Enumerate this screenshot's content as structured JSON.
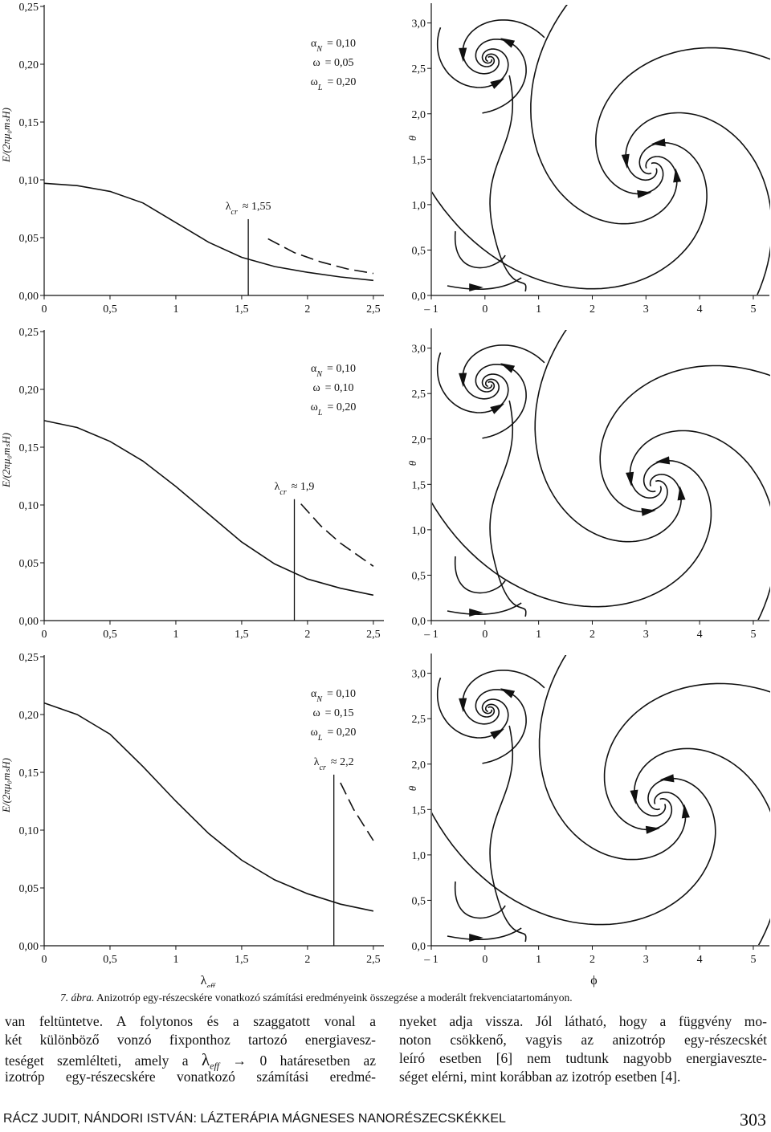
{
  "chart_data": [
    {
      "type": "line",
      "ylabel": "E/(2πμ₀mₛH)",
      "xlim": [
        0,
        2.58
      ],
      "ylim": [
        0,
        0.25
      ],
      "xticks": [
        0,
        {
          "value": 0.5,
          "label": "0,5"
        },
        1,
        {
          "value": 1.5,
          "label": "1,5"
        },
        2,
        {
          "value": 2.5,
          "label": "2,5"
        }
      ],
      "yticks": [
        {
          "value": 0,
          "label": "0,00"
        },
        {
          "value": 0.05,
          "label": "0,05"
        },
        {
          "value": 0.1,
          "label": "0,10"
        },
        {
          "value": 0.15,
          "label": "0,15"
        },
        {
          "value": 0.2,
          "label": "0,20"
        },
        {
          "value": 0.25,
          "label": "0,25"
        }
      ],
      "params": [
        {
          "symbol": "α",
          "sub": "N",
          "text": "= 0,10"
        },
        {
          "symbol": "ω",
          "text": "= 0,05"
        },
        {
          "symbol": "ω",
          "sub": "L",
          "text": "= 0,20"
        }
      ],
      "critical": {
        "x": 1.55,
        "top": 0.066,
        "label": {
          "symbol": "λ",
          "sub": "cr",
          "text": "≈ 1,55"
        }
      },
      "series": [
        {
          "style": "solid",
          "x": [
            0,
            0.25,
            0.5,
            0.75,
            1,
            1.25,
            1.5,
            1.75,
            2,
            2.25,
            2.5
          ],
          "values": [
            0.097,
            0.095,
            0.09,
            0.08,
            0.063,
            0.046,
            0.033,
            0.025,
            0.02,
            0.016,
            0.013
          ]
        },
        {
          "style": "dashed",
          "x": [
            1.7,
            1.9,
            2.1,
            2.3,
            2.5
          ],
          "values": [
            0.049,
            0.037,
            0.029,
            0.023,
            0.019
          ]
        }
      ]
    },
    {
      "type": "phase",
      "ylabel": "θ",
      "xlim": [
        -1,
        5.3
      ],
      "ylim": [
        0,
        3.2
      ],
      "xticks": [
        {
          "value": -1,
          "label": "– 1"
        },
        0,
        1,
        2,
        3,
        4,
        5
      ],
      "yticks": [
        {
          "value": 0,
          "label": "0,0"
        },
        {
          "value": 0.5,
          "label": "0,5"
        },
        {
          "value": 1,
          "label": "1,0"
        },
        {
          "value": 1.5,
          "label": "1,5"
        },
        {
          "value": 2,
          "label": "2,0"
        },
        {
          "value": 2.5,
          "label": "2,5"
        },
        {
          "value": 3,
          "label": "3,0"
        }
      ]
    },
    {
      "type": "line",
      "ylabel": "E/(2πμ₀mₛH)",
      "xlim": [
        0,
        2.58
      ],
      "ylim": [
        0,
        0.25
      ],
      "xticks": [
        0,
        {
          "value": 0.5,
          "label": "0,5"
        },
        1,
        {
          "value": 1.5,
          "label": "1,5"
        },
        2,
        {
          "value": 2.5,
          "label": "2,5"
        }
      ],
      "yticks": [
        {
          "value": 0,
          "label": "0,00"
        },
        {
          "value": 0.05,
          "label": "0,05"
        },
        {
          "value": 0.1,
          "label": "0,10"
        },
        {
          "value": 0.15,
          "label": "0,15"
        },
        {
          "value": 0.2,
          "label": "0,20"
        },
        {
          "value": 0.25,
          "label": "0,25"
        }
      ],
      "params": [
        {
          "symbol": "α",
          "sub": "N",
          "text": "= 0,10"
        },
        {
          "symbol": "ω",
          "text": "= 0,10"
        },
        {
          "symbol": "ω",
          "sub": "L",
          "text": "= 0,20"
        }
      ],
      "critical": {
        "x": 1.9,
        "top": 0.105,
        "label": {
          "symbol": "λ",
          "sub": "cr",
          "text": "≈ 1,9"
        }
      },
      "series": [
        {
          "style": "solid",
          "x": [
            0,
            0.25,
            0.5,
            0.75,
            1,
            1.25,
            1.5,
            1.75,
            2,
            2.25,
            2.5
          ],
          "values": [
            0.173,
            0.167,
            0.155,
            0.138,
            0.116,
            0.092,
            0.068,
            0.049,
            0.036,
            0.028,
            0.022
          ]
        },
        {
          "style": "dashed",
          "x": [
            1.95,
            2.1,
            2.25,
            2.4,
            2.5
          ],
          "values": [
            0.101,
            0.082,
            0.067,
            0.055,
            0.047
          ]
        }
      ]
    },
    {
      "type": "phase",
      "ylabel": "θ",
      "xlim": [
        -1,
        5.3
      ],
      "ylim": [
        0,
        3.2
      ],
      "xticks": [
        {
          "value": -1,
          "label": "– 1"
        },
        0,
        1,
        2,
        3,
        4,
        5
      ],
      "yticks": [
        {
          "value": 0,
          "label": "0,0"
        },
        {
          "value": 0.5,
          "label": "0,5"
        },
        {
          "value": 1,
          "label": "1,0"
        },
        {
          "value": 1.5,
          "label": "1,5"
        },
        {
          "value": 2,
          "label": "2,0"
        },
        {
          "value": 2.5,
          "label": "2,5"
        },
        {
          "value": 3,
          "label": "3,0"
        }
      ]
    },
    {
      "type": "line",
      "ylabel": "E/(2πμ₀mₛH)",
      "xlabel": {
        "symbol": "λ",
        "sub": "eff"
      },
      "xlim": [
        0,
        2.58
      ],
      "ylim": [
        0,
        0.25
      ],
      "xticks": [
        0,
        {
          "value": 0.5,
          "label": "0,5"
        },
        1,
        {
          "value": 1.5,
          "label": "1,5"
        },
        2,
        {
          "value": 2.5,
          "label": "2,5"
        }
      ],
      "yticks": [
        {
          "value": 0,
          "label": "0,00"
        },
        {
          "value": 0.05,
          "label": "0,05"
        },
        {
          "value": 0.1,
          "label": "0,10"
        },
        {
          "value": 0.15,
          "label": "0,15"
        },
        {
          "value": 0.2,
          "label": "0,20"
        },
        {
          "value": 0.25,
          "label": "0,25"
        }
      ],
      "params": [
        {
          "symbol": "α",
          "sub": "N",
          "text": "= 0,10"
        },
        {
          "symbol": "ω",
          "text": "= 0,15"
        },
        {
          "symbol": "ω",
          "sub": "L",
          "text": "= 0,20"
        }
      ],
      "critical": {
        "x": 2.2,
        "top": 0.148,
        "label": {
          "symbol": "λ",
          "sub": "cr",
          "text": "≈ 2,2"
        }
      },
      "series": [
        {
          "style": "solid",
          "x": [
            0,
            0.25,
            0.5,
            0.75,
            1,
            1.25,
            1.5,
            1.75,
            2,
            2.25,
            2.5
          ],
          "values": [
            0.21,
            0.2,
            0.183,
            0.155,
            0.125,
            0.097,
            0.074,
            0.057,
            0.045,
            0.036,
            0.03
          ]
        },
        {
          "style": "dashed",
          "x": [
            2.25,
            2.35,
            2.45,
            2.5
          ],
          "values": [
            0.141,
            0.118,
            0.1,
            0.091
          ]
        }
      ]
    },
    {
      "type": "phase",
      "ylabel": "θ",
      "xlabel": {
        "symbol": "ϕ"
      },
      "xlim": [
        -1,
        5.3
      ],
      "ylim": [
        0,
        3.2
      ],
      "xticks": [
        {
          "value": -1,
          "label": "– 1"
        },
        0,
        1,
        2,
        3,
        4,
        5
      ],
      "yticks": [
        {
          "value": 0,
          "label": "0,0"
        },
        {
          "value": 0.5,
          "label": "0,5"
        },
        {
          "value": 1,
          "label": "1,0"
        },
        {
          "value": 1.5,
          "label": "1,5"
        },
        {
          "value": 2,
          "label": "2,0"
        },
        {
          "value": 2.5,
          "label": "2,5"
        },
        {
          "value": 3,
          "label": "3,0"
        }
      ]
    }
  ],
  "caption": {
    "number": "7. ábra.",
    "text": "Anizotróp egy-részecskére vonatkozó számítási eredményeink összegzése a moderált frekvenciatartományon."
  },
  "body": {
    "left": [
      "van feltüntetve. A folytonos és a szaggatott vonal a",
      "két különböző vonzó fixponthoz tartozó energiavesz-",
      {
        "before": "teséget szemlélteti, amely a ",
        "symbol": "λ",
        "sub": "eff",
        "after": " → 0 határesetben az"
      },
      "izotróp egy-részecskére vonatkozó számítási eredmé-"
    ],
    "right": [
      "nyeket adja vissza. Jól látható, hogy a függvény mo-",
      "noton csökkenő, vagyis az anizotróp egy-részecskét",
      "leíró esetben [6] nem tudtunk nagyobb energiaveszte-",
      "séget elérni, mint korábban az izotróp esetben [4]."
    ]
  },
  "footer": {
    "running_title": "RÁCZ JUDIT, NÁNDORI ISTVÁN: LÁZTERÁPIA MÁGNESES NANORÉSZECSKÉKKEL",
    "page": "303"
  }
}
